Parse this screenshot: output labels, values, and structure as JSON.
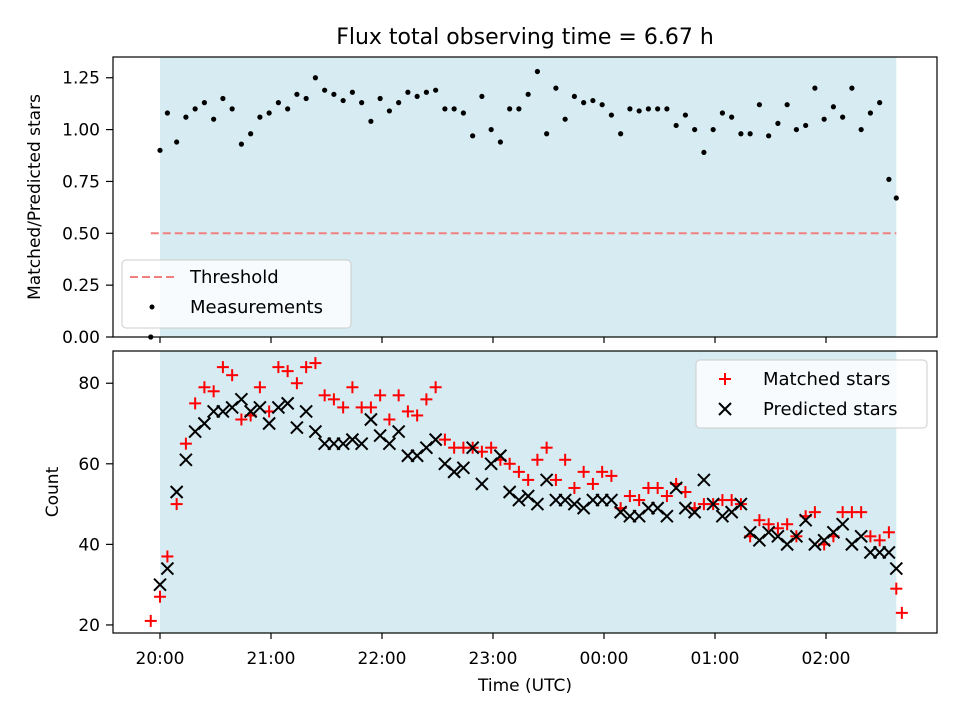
{
  "title": "Flux total observing time = 6.67 h",
  "chart_data": [
    {
      "type": "scatter",
      "ylabel": "Matched/Predicted stars",
      "ylim": [
        0,
        1.35
      ],
      "yticks": [
        "0.00",
        "0.25",
        "0.50",
        "0.75",
        "1.00",
        "1.25"
      ],
      "ytick_values": [
        0,
        0.25,
        0.5,
        0.75,
        1.0,
        1.25
      ],
      "observing_window": [
        "20:00",
        "02:38"
      ],
      "threshold": 0.5,
      "legend_position": "lower-left",
      "series": [
        {
          "name": "Threshold",
          "kind": "dashed-line",
          "color": "#f08080",
          "x_range": [
            "19:55",
            "02:38"
          ],
          "y": 0.5
        },
        {
          "name": "Measurements",
          "kind": "dots",
          "color": "#000000",
          "x": [
            "19:55",
            "20:00",
            "20:04",
            "20:09",
            "20:14",
            "20:19",
            "20:24",
            "20:29",
            "20:34",
            "20:39",
            "20:44",
            "20:49",
            "20:54",
            "20:59",
            "21:04",
            "21:09",
            "21:14",
            "21:19",
            "21:24",
            "21:29",
            "21:34",
            "21:39",
            "21:44",
            "21:49",
            "21:54",
            "21:59",
            "22:04",
            "22:09",
            "22:14",
            "22:19",
            "22:24",
            "22:29",
            "22:34",
            "22:39",
            "22:44",
            "22:49",
            "22:54",
            "22:59",
            "23:04",
            "23:09",
            "23:14",
            "23:19",
            "23:24",
            "23:29",
            "23:34",
            "23:39",
            "23:44",
            "23:49",
            "23:54",
            "23:59",
            "00:04",
            "00:09",
            "00:14",
            "00:19",
            "00:24",
            "00:29",
            "00:34",
            "00:39",
            "00:44",
            "00:49",
            "00:54",
            "00:59",
            "01:04",
            "01:09",
            "01:14",
            "01:19",
            "01:24",
            "01:29",
            "01:34",
            "01:39",
            "01:44",
            "01:49",
            "01:54",
            "01:59",
            "02:04",
            "02:09",
            "02:14",
            "02:19",
            "02:24",
            "02:29",
            "02:34",
            "02:38"
          ],
          "y": [
            0.0,
            0.9,
            1.08,
            0.94,
            1.06,
            1.1,
            1.13,
            1.05,
            1.15,
            1.1,
            0.93,
            0.98,
            1.06,
            1.08,
            1.13,
            1.1,
            1.17,
            1.15,
            1.25,
            1.19,
            1.17,
            1.14,
            1.18,
            1.13,
            1.04,
            1.15,
            1.09,
            1.13,
            1.18,
            1.16,
            1.18,
            1.19,
            1.1,
            1.1,
            1.08,
            0.97,
            1.16,
            1.0,
            0.94,
            1.1,
            1.1,
            1.17,
            1.28,
            0.98,
            1.2,
            1.05,
            1.16,
            1.13,
            1.14,
            1.12,
            1.07,
            0.98,
            1.1,
            1.09,
            1.1,
            1.1,
            1.1,
            1.02,
            1.07,
            1.0,
            0.89,
            1.0,
            1.08,
            1.06,
            0.98,
            0.98,
            1.12,
            0.97,
            1.03,
            1.12,
            1.0,
            1.02,
            1.2,
            1.05,
            1.11,
            1.06,
            1.2,
            1.0,
            1.08,
            1.13,
            0.76,
            0.67
          ]
        }
      ]
    },
    {
      "type": "scatter",
      "xlabel": "Time (UTC)",
      "ylabel": "Count",
      "ylim": [
        18,
        88
      ],
      "yticks": [
        "20",
        "40",
        "60",
        "80"
      ],
      "ytick_values": [
        20,
        40,
        60,
        80
      ],
      "xticks": [
        "20:00",
        "21:00",
        "22:00",
        "23:00",
        "00:00",
        "01:00",
        "02:00"
      ],
      "observing_window": [
        "20:00",
        "02:38"
      ],
      "legend_position": "top-right",
      "series": [
        {
          "name": "Matched stars",
          "kind": "plus",
          "color": "#ff0000",
          "x": [
            "19:55",
            "20:00",
            "20:04",
            "20:09",
            "20:14",
            "20:19",
            "20:24",
            "20:29",
            "20:34",
            "20:39",
            "20:44",
            "20:49",
            "20:54",
            "20:59",
            "21:04",
            "21:09",
            "21:14",
            "21:19",
            "21:24",
            "21:29",
            "21:34",
            "21:39",
            "21:44",
            "21:49",
            "21:54",
            "21:59",
            "22:04",
            "22:09",
            "22:14",
            "22:19",
            "22:24",
            "22:29",
            "22:34",
            "22:39",
            "22:44",
            "22:49",
            "22:54",
            "22:59",
            "23:04",
            "23:09",
            "23:14",
            "23:19",
            "23:24",
            "23:29",
            "23:34",
            "23:39",
            "23:44",
            "23:49",
            "23:54",
            "23:59",
            "00:04",
            "00:09",
            "00:14",
            "00:19",
            "00:24",
            "00:29",
            "00:34",
            "00:39",
            "00:44",
            "00:49",
            "00:54",
            "00:59",
            "01:04",
            "01:09",
            "01:14",
            "01:19",
            "01:24",
            "01:29",
            "01:34",
            "01:39",
            "01:44",
            "01:49",
            "01:54",
            "01:59",
            "02:04",
            "02:09",
            "02:14",
            "02:19",
            "02:24",
            "02:29",
            "02:34",
            "02:38"
          ],
          "y": [
            21,
            27,
            37,
            50,
            65,
            75,
            79,
            78,
            84,
            82,
            71,
            72,
            79,
            73,
            84,
            83,
            80,
            84,
            85,
            77,
            76,
            74,
            79,
            74,
            74,
            77,
            71,
            77,
            73,
            72,
            76,
            79,
            66,
            64,
            64,
            64,
            63,
            64,
            61,
            60,
            58,
            56,
            61,
            64,
            56,
            61,
            54,
            58,
            55,
            58,
            57,
            49,
            52,
            51,
            54,
            54,
            52,
            55,
            53,
            49,
            50,
            50,
            51,
            51,
            50,
            42,
            46,
            45,
            44,
            45,
            42,
            47,
            48,
            40,
            42,
            48,
            48,
            48,
            42,
            41,
            43,
            29
          ],
          "last_point": {
            "x": "02:41",
            "y": 23
          }
        },
        {
          "name": "Predicted stars",
          "kind": "x",
          "color": "#000000",
          "x": [
            "19:55",
            "20:00",
            "20:04",
            "20:09",
            "20:14",
            "20:19",
            "20:24",
            "20:29",
            "20:34",
            "20:39",
            "20:44",
            "20:49",
            "20:54",
            "20:59",
            "21:04",
            "21:09",
            "21:14",
            "21:19",
            "21:24",
            "21:29",
            "21:34",
            "21:39",
            "21:44",
            "21:49",
            "21:54",
            "21:59",
            "22:04",
            "22:09",
            "22:14",
            "22:19",
            "22:24",
            "22:29",
            "22:34",
            "22:39",
            "22:44",
            "22:49",
            "22:54",
            "22:59",
            "23:04",
            "23:09",
            "23:14",
            "23:19",
            "23:24",
            "23:29",
            "23:34",
            "23:39",
            "23:44",
            "23:49",
            "23:54",
            "23:59",
            "00:04",
            "00:09",
            "00:14",
            "00:19",
            "00:24",
            "00:29",
            "00:34",
            "00:39",
            "00:44",
            "00:49",
            "00:54",
            "00:59",
            "01:04",
            "01:09",
            "01:14",
            "01:19",
            "01:24",
            "01:29",
            "01:34",
            "01:39",
            "01:44",
            "01:49",
            "01:54",
            "01:59",
            "02:04",
            "02:09",
            "02:14",
            "02:19",
            "02:24",
            "02:29",
            "02:34",
            "02:38"
          ],
          "y": [
            null,
            30,
            34,
            53,
            61,
            68,
            70,
            73,
            73,
            74,
            76,
            73,
            74,
            70,
            74,
            75,
            69,
            73,
            68,
            65,
            65,
            65,
            66,
            65,
            71,
            67,
            65,
            68,
            62,
            62,
            64,
            66,
            60,
            58,
            59,
            64,
            55,
            60,
            62,
            53,
            51,
            52,
            50,
            56,
            51,
            51,
            50,
            49,
            51,
            51,
            51,
            48,
            47,
            47,
            49,
            49,
            47,
            54,
            49,
            48,
            56,
            50,
            47,
            48,
            50,
            43,
            41,
            43,
            42,
            40,
            42,
            46,
            40,
            41,
            43,
            45,
            40,
            42,
            38,
            38,
            38,
            34
          ]
        }
      ]
    }
  ]
}
